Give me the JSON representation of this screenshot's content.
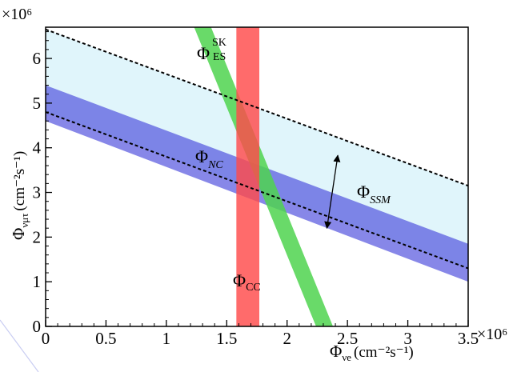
{
  "chart_data": {
    "type": "area",
    "x_multiplier": "×10⁶",
    "y_multiplier": "×10⁶",
    "xlabel": {
      "main": "Φ",
      "sub": "νe",
      "units": "(cm⁻²s⁻¹)"
    },
    "ylabel": {
      "main": "Φ",
      "sub": "νμτ",
      "units": "(cm⁻²s⁻¹)"
    },
    "xlim": [
      0,
      3.5
    ],
    "ylim": [
      0,
      6.7
    ],
    "x_ticks": [
      0,
      0.5,
      1,
      1.5,
      2,
      2.5,
      3,
      3.5
    ],
    "x_tick_labels": [
      "0",
      "0.5",
      "1",
      "1.5",
      "2",
      "2.5",
      "3",
      "3.5"
    ],
    "y_ticks": [
      0,
      1,
      2,
      3,
      4,
      5,
      6
    ],
    "y_tick_labels": [
      "0",
      "1",
      "2",
      "3",
      "4",
      "5",
      "6"
    ],
    "grid": false,
    "bands": [
      {
        "label": {
          "main": "Φ",
          "sub": "SSM"
        },
        "kind": "diagonal",
        "color": "#c6edf8",
        "opacity": 0.55,
        "line1": [
          [
            0,
            6.65
          ],
          [
            3.5,
            3.15
          ]
        ],
        "line2": [
          [
            0,
            4.8
          ],
          [
            3.5,
            1.3
          ]
        ],
        "dashed_edges": true
      },
      {
        "label": {
          "main": "Φ",
          "sub": "NC"
        },
        "kind": "diagonal",
        "color": "#4747dc",
        "opacity": 0.65,
        "line1": [
          [
            0,
            5.4
          ],
          [
            3.5,
            1.85
          ]
        ],
        "line2": [
          [
            0,
            4.6
          ],
          [
            3.5,
            1.0
          ]
        ]
      },
      {
        "label": {
          "main": "Φ",
          "sup": "SK",
          "sub": "ES"
        },
        "kind": "diagonal",
        "color": "#4fd44f",
        "opacity": 0.85,
        "line1": [
          [
            1.23,
            6.7
          ],
          [
            2.24,
            0
          ]
        ],
        "line2": [
          [
            1.37,
            6.7
          ],
          [
            2.38,
            0
          ]
        ]
      },
      {
        "label": {
          "main": "Φ",
          "sub": "CC"
        },
        "kind": "vertical",
        "color": "#ff4a4a",
        "opacity": 0.82,
        "x_range": [
          1.58,
          1.77
        ]
      }
    ],
    "dashed_lines": [
      {
        "from": [
          0,
          6.65
        ],
        "to": [
          3.5,
          3.15
        ]
      },
      {
        "from": [
          0,
          4.8
        ],
        "to": [
          3.5,
          1.3
        ]
      }
    ],
    "annotations": {
      "ssm_arrow": {
        "from": [
          2.33,
          2.2
        ],
        "to": [
          2.42,
          3.83
        ]
      }
    },
    "colors": {
      "axis": "#000000",
      "dashed": "#000000",
      "arrow": "#000000"
    }
  }
}
